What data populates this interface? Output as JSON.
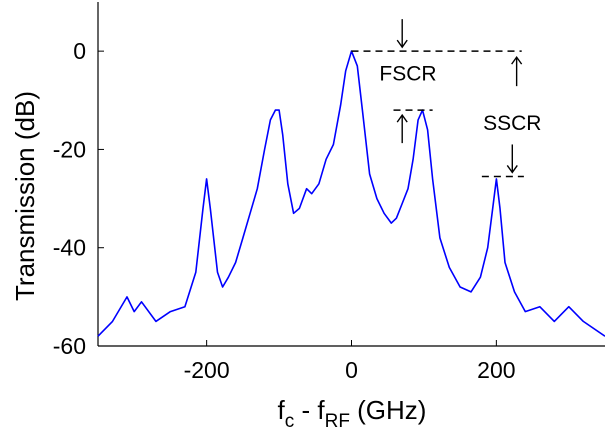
{
  "chart_data": {
    "type": "line",
    "title": "",
    "xlabel_main": "f",
    "xlabel_sub1": "c",
    "xlabel_mid": " - f",
    "xlabel_sub2": "RF",
    "xlabel_tail": " (GHz)",
    "ylabel": "Transmission (dB)",
    "xlim": [
      -350,
      350
    ],
    "ylim": [
      -60,
      10
    ],
    "xticks": [
      -200,
      0,
      200
    ],
    "yticks": [
      0,
      -20,
      -40,
      -60
    ],
    "grid": false,
    "legend": "none",
    "series": [
      {
        "color": "#0000ff",
        "x": [
          -350,
          -330,
          -310,
          -300,
          -290,
          -270,
          -250,
          -230,
          -215,
          -205,
          -200,
          -195,
          -185,
          -178,
          -170,
          -160,
          -150,
          -140,
          -130,
          -120,
          -112,
          -105,
          -100,
          -95,
          -88,
          -80,
          -72,
          -62,
          -55,
          -45,
          -35,
          -25,
          -15,
          -8,
          0,
          8,
          15,
          25,
          35,
          45,
          55,
          62,
          70,
          78,
          85,
          92,
          98,
          105,
          112,
          122,
          135,
          150,
          165,
          178,
          188,
          195,
          200,
          205,
          212,
          225,
          240,
          260,
          280,
          300,
          320,
          350
        ],
        "y": [
          -58,
          -55,
          -50,
          -53,
          -51,
          -55,
          -53,
          -52,
          -45,
          -32,
          -26,
          -32,
          -45,
          -48,
          -46,
          -43,
          -38,
          -33,
          -28,
          -20,
          -14,
          -12,
          -12,
          -17,
          -27,
          -33,
          -32,
          -28,
          -29,
          -27,
          -22,
          -19,
          -11,
          -4,
          0,
          -3,
          -12,
          -25,
          -30,
          -33,
          -35,
          -34,
          -31,
          -28,
          -22,
          -14,
          -12,
          -16,
          -26,
          -38,
          -44,
          -48,
          -49,
          -46,
          -40,
          -32,
          -26,
          -32,
          -43,
          -49,
          -53,
          -52,
          -55,
          -52,
          -55,
          -58
        ]
      }
    ],
    "annotations": [
      {
        "text": "FSCR",
        "x": 78,
        "y": -6
      },
      {
        "text": "SSCR",
        "x": 222,
        "y": -16
      }
    ],
    "reference_levels": [
      0,
      -12,
      -25.5
    ]
  }
}
